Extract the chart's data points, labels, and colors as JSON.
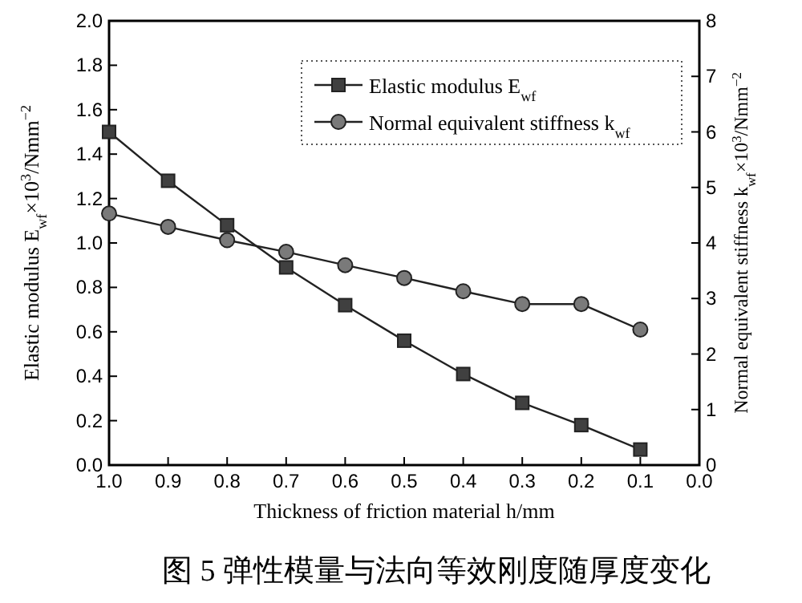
{
  "chart_data": {
    "type": "line",
    "x": [
      1.0,
      0.9,
      0.8,
      0.7,
      0.6,
      0.5,
      0.4,
      0.3,
      0.2,
      0.1
    ],
    "series": [
      {
        "name": "Elastic modulus E$_{wf}$",
        "color": "#404040",
        "marker": "square",
        "values": [
          1.5,
          1.28,
          1.08,
          0.89,
          0.72,
          0.56,
          0.41,
          0.28,
          0.18,
          0.07
        ]
      },
      {
        "name": "Normal equivalent stiffness k$_{wf}$",
        "color": "#7a7a7a",
        "marker": "circle",
        "axis": "y2",
        "values": [
          4.53,
          4.29,
          4.05,
          3.84,
          3.6,
          3.37,
          3.13,
          2.9,
          2.9,
          2.44
        ]
      }
    ],
    "xlabel": "Thickness of friction material h/mm",
    "ylabel": "Elastic modulus E$_{wf}$×10$^{3}$/Nmm$^{−2}$",
    "y2label": "Normal equivalent stiffness k$_{wf}$×10$^{3}$/Nmm$^{−2}$",
    "xlim": [
      1.0,
      0.0
    ],
    "xticks": [
      {
        "value": 1.0,
        "label": "1.0"
      },
      {
        "value": 0.9,
        "label": "0.9"
      },
      {
        "value": 0.8,
        "label": "0.8"
      },
      {
        "value": 0.7,
        "label": "0.7"
      },
      {
        "value": 0.6,
        "label": "0.6"
      },
      {
        "value": 0.5,
        "label": "0.5"
      },
      {
        "value": 0.4,
        "label": "0.4"
      },
      {
        "value": 0.3,
        "label": "0.3"
      },
      {
        "value": 0.2,
        "label": "0.2"
      },
      {
        "value": 0.1,
        "label": "0.1"
      },
      {
        "value": 0.0,
        "label": "0.0"
      }
    ],
    "ylim": [
      0.0,
      2.0
    ],
    "yticks": [
      {
        "value": 0.0,
        "label": "0.0"
      },
      {
        "value": 0.2,
        "label": "0.2"
      },
      {
        "value": 0.4,
        "label": "0.4"
      },
      {
        "value": 0.6,
        "label": "0.6"
      },
      {
        "value": 0.8,
        "label": "0.8"
      },
      {
        "value": 1.0,
        "label": "1.0"
      },
      {
        "value": 1.2,
        "label": "1.2"
      },
      {
        "value": 1.4,
        "label": "1.4"
      },
      {
        "value": 1.6,
        "label": "1.6"
      },
      {
        "value": 1.8,
        "label": "1.8"
      },
      {
        "value": 2.0,
        "label": "2.0"
      }
    ],
    "y2lim": [
      0,
      8
    ],
    "y2ticks": [
      0,
      1,
      2,
      3,
      4,
      5,
      6,
      7,
      8
    ],
    "legend": "top right",
    "grid": false,
    "line_style": "solid",
    "annotations": [
      "图 5 弹性模量与法向等效刚度随厚度变化"
    ]
  }
}
